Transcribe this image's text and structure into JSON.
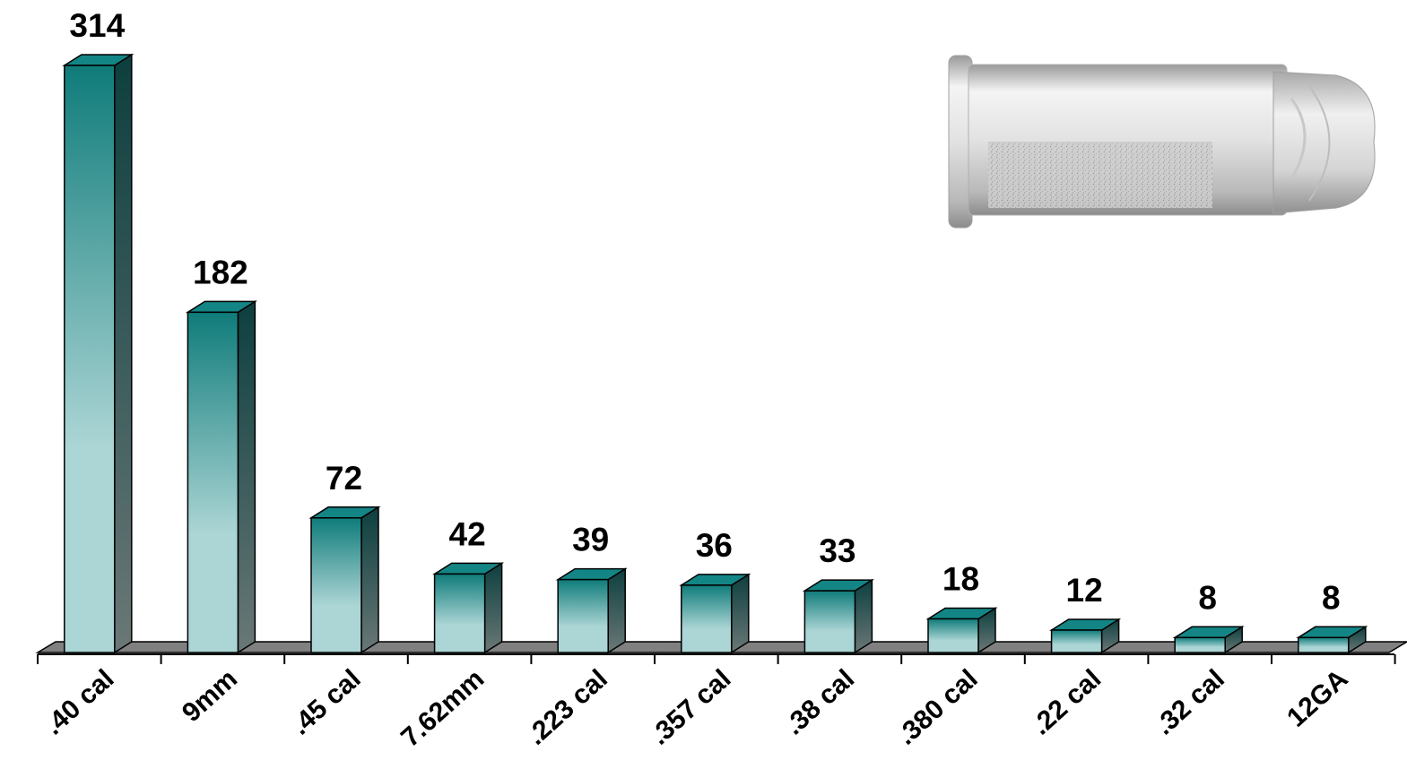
{
  "chart_data": {
    "type": "bar",
    "categories": [
      ".40 cal",
      "9mm",
      ".45 cal",
      "7.62mm",
      ".223 cal",
      ".357 cal",
      ".38 cal",
      ".380 cal",
      ".22 cal",
      ".32 cal",
      "12GA"
    ],
    "values": [
      314,
      182,
      72,
      42,
      39,
      36,
      33,
      18,
      12,
      8,
      8
    ],
    "data_labels": [
      "314",
      "182",
      "72",
      "42",
      "39",
      "36",
      "33",
      "18",
      "12",
      "8",
      "8"
    ],
    "ylim": [
      0,
      314
    ],
    "grid": false,
    "legend": "none",
    "style": "3d-column",
    "colors": {
      "bar_top": "#0f7c7a",
      "bar_bottom": "#acd5d5",
      "bar_side_top": "#0d3f3f",
      "bar_side_bottom": "#6a7877",
      "bar_cap": "#148585",
      "floor": "#808080"
    }
  },
  "decoration": {
    "image": "bullet-cartridge-icon"
  }
}
